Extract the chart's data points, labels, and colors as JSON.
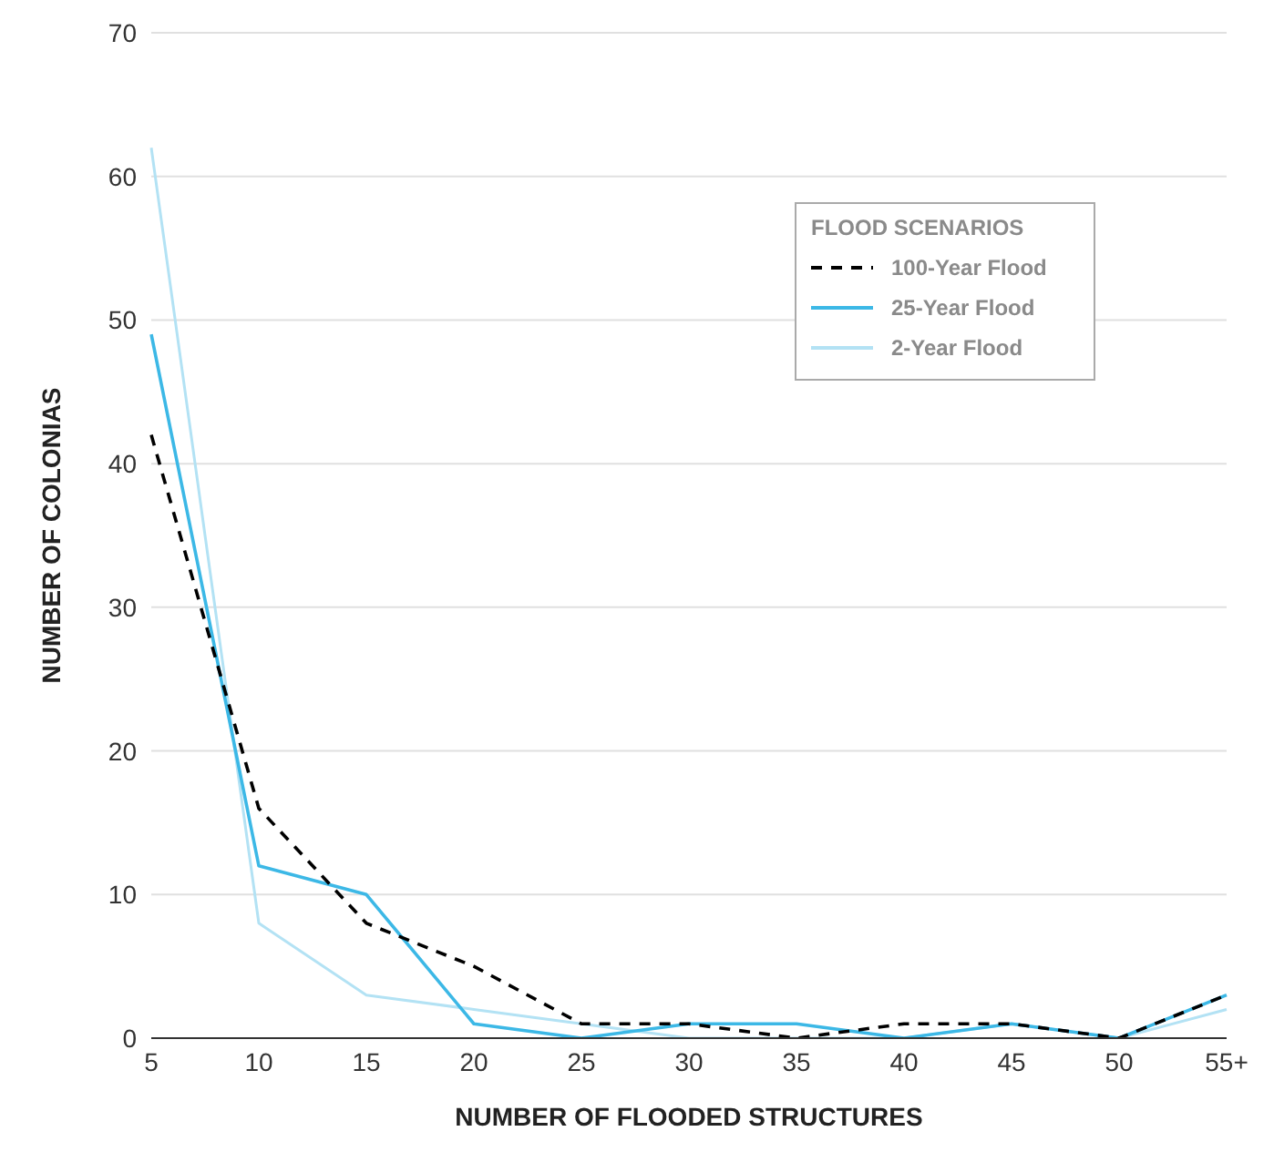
{
  "chart_data": {
    "type": "line",
    "xlabel": "NUMBER OF FLOODED STRUCTURES",
    "ylabel": "NUMBER OF COLONIAS",
    "legend_title": "FLOOD SCENARIOS",
    "categories": [
      "5",
      "10",
      "15",
      "20",
      "25",
      "30",
      "35",
      "40",
      "45",
      "50",
      "55+"
    ],
    "series": [
      {
        "name": "100-Year Flood",
        "color": "#000000",
        "line_style": "dashed",
        "values": [
          42,
          16,
          8,
          5,
          1,
          1,
          0,
          1,
          1,
          0,
          3
        ]
      },
      {
        "name": "25-Year Flood",
        "color": "#3cb8e6",
        "line_style": "solid",
        "values": [
          49,
          12,
          10,
          1,
          0,
          1,
          1,
          0,
          1,
          0,
          3
        ]
      },
      {
        "name": "2-Year Flood",
        "color": "#b3e2f4",
        "line_style": "solid",
        "values": [
          62,
          8,
          3,
          2,
          1,
          0,
          0,
          0,
          1,
          0,
          2
        ]
      }
    ],
    "ylim": [
      0,
      70
    ],
    "yticks": [
      0,
      10,
      20,
      30,
      40,
      50,
      60,
      70
    ],
    "grid": "y",
    "legend": "top right",
    "marker": "none"
  }
}
